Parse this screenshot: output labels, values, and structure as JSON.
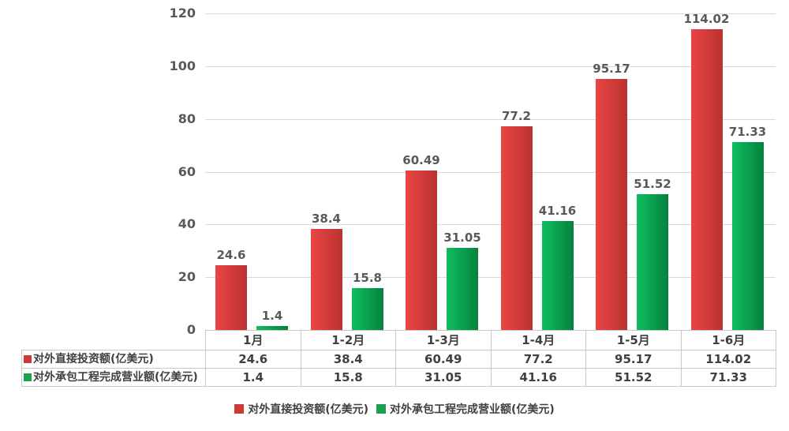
{
  "chart_data": {
    "type": "bar",
    "title": "",
    "categories": [
      "1月",
      "1-2月",
      "1-3月",
      "1-4月",
      "1-5月",
      "1-6月"
    ],
    "series": [
      {
        "name": "对外直接投资额(亿美元)",
        "values": [
          24.6,
          38.4,
          60.49,
          77.2,
          95.17,
          114.02
        ],
        "color_start": "#ea4543",
        "color_end": "#b93231",
        "legend_color": "#cf3a37"
      },
      {
        "name": "对外承包工程完成营业额(亿美元)",
        "values": [
          1.4,
          15.8,
          31.05,
          41.16,
          51.52,
          71.33
        ],
        "color_start": "#0fbe60",
        "color_end": "#05813d",
        "legend_color": "#1aa24d"
      }
    ],
    "ylim": [
      0,
      120
    ],
    "yticks": [
      0,
      20,
      40,
      60,
      80,
      100,
      120
    ],
    "grid": true,
    "value_labels": true,
    "legend_position": "bottom",
    "xlabel": "",
    "ylabel": "",
    "colors": {
      "grid": "#d9d9d9",
      "axis_text": "#595959",
      "value_label_text": "#595959",
      "table_text": "#404040",
      "table_border": "#c9c9c9",
      "background": "#ffffff"
    }
  }
}
